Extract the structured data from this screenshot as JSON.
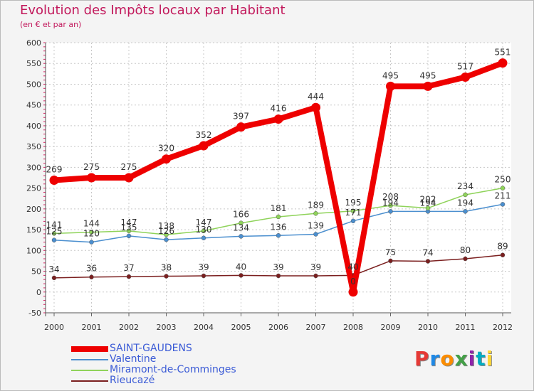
{
  "header": {
    "title": "Evolution des Impôts locaux par Habitant",
    "subtitle": "(en € et par an)"
  },
  "logo": {
    "text": "Proxiti",
    "colors": [
      "#e53935",
      "#1e88e5",
      "#fb8c00",
      "#43a047",
      "#8e24aa",
      "#00acc1",
      "#fdd835"
    ]
  },
  "chart_data": {
    "type": "line",
    "title": "Evolution des Impôts locaux par Habitant",
    "subtitle": "(en € et par an)",
    "xlabel": "",
    "ylabel": "",
    "categories": [
      "2000",
      "2001",
      "2002",
      "2003",
      "2004",
      "2005",
      "2006",
      "2007",
      "2008",
      "2009",
      "2010",
      "2011",
      "2012"
    ],
    "ylim": [
      -50,
      600
    ],
    "yticks": [
      -50,
      0,
      50,
      100,
      150,
      200,
      250,
      300,
      350,
      400,
      450,
      500,
      550,
      600
    ],
    "grid": true,
    "legend_position": "bottom-left",
    "series": [
      {
        "name": "SAINT-GAUDENS",
        "color": "#ee0000",
        "values": [
          269,
          275,
          275,
          320,
          352,
          397,
          416,
          444,
          0,
          495,
          495,
          517,
          551
        ]
      },
      {
        "name": "Valentine",
        "color": "#4b8fcf",
        "values": [
          125,
          120,
          135,
          126,
          130,
          134,
          136,
          139,
          171,
          194,
          194,
          194,
          211
        ]
      },
      {
        "name": "Miramont-de-Comminges",
        "color": "#8fd35a",
        "values": [
          141,
          144,
          147,
          138,
          147,
          166,
          181,
          189,
          195,
          208,
          202,
          234,
          250
        ]
      },
      {
        "name": "Rieucazé",
        "color": "#7b1f1f",
        "values": [
          34,
          36,
          37,
          38,
          39,
          40,
          39,
          39,
          40,
          75,
          74,
          80,
          89
        ]
      }
    ]
  }
}
